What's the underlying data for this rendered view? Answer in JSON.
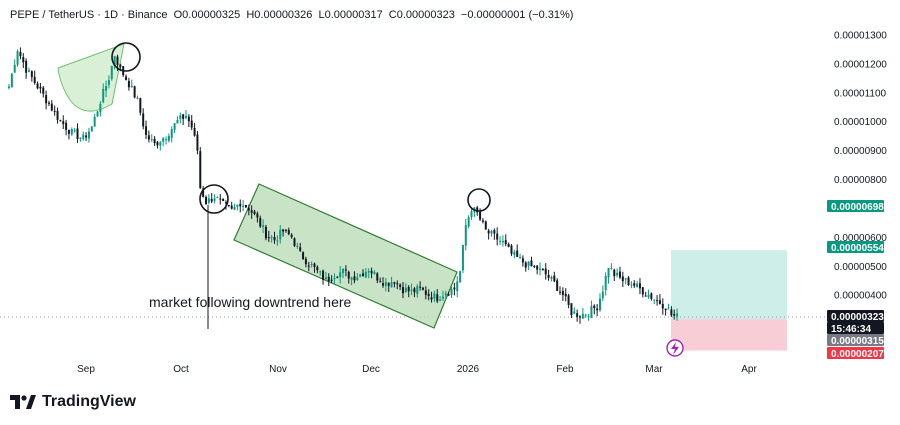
{
  "header": {
    "symbol": "PEPE / TetherUS · 1D · Binance",
    "open": "O0.00000325",
    "high": "H0.00000326",
    "low": "L0.00000317",
    "close": "C0.00000323",
    "change": "−0.00000001 (−0.31%)"
  },
  "footer": {
    "brand": "TradingView",
    "logo_icon": "tradingview-logo-icon"
  },
  "colors": {
    "up": "#089981",
    "down": "#131722",
    "target_zone": "#cdeee9",
    "stop_zone": "#f8cdd5",
    "channel": "#b7d9b3",
    "channel_border": "#2e7d32",
    "price_tag": "#089981",
    "current_tag": "#131722",
    "stop_tag": "#f23645",
    "entry_tag": "#787b86"
  },
  "chart_data": {
    "type": "candlestick",
    "y_axis": {
      "ticks": [
        "0.00001300",
        "0.00001200",
        "0.00001100",
        "0.00001000",
        "0.00000900",
        "0.00000800",
        "0.00000600",
        "0.00000500",
        "0.00000400"
      ],
      "tick_values": [
        1300,
        1200,
        1100,
        1000,
        900,
        800,
        600,
        500,
        400
      ],
      "ylim": [
        150,
        1350
      ]
    },
    "x_axis": {
      "ticks": [
        "Sep",
        "Oct",
        "Nov",
        "Dec",
        "2026",
        "Feb",
        "Mar",
        "Apr"
      ]
    },
    "price_tags": [
      {
        "label": "0.00000698",
        "value": 698,
        "kind": "price"
      },
      {
        "label": "0.00000554",
        "value": 554,
        "kind": "price"
      },
      {
        "label": "0.00000323",
        "value": 323,
        "kind": "current"
      },
      {
        "label": "15:46:34",
        "value": 323,
        "kind": "timer"
      },
      {
        "label": "0.00000315",
        "value": 315,
        "kind": "entry"
      },
      {
        "label": "0.00000207",
        "value": 207,
        "kind": "stop"
      }
    ],
    "annotations": {
      "text": "market following downtrend here"
    },
    "position": {
      "target": 554,
      "entry": 315,
      "stop": 207
    },
    "waypoints": [
      [
        0,
        1120
      ],
      [
        3,
        1250
      ],
      [
        6,
        1180
      ],
      [
        10,
        1120
      ],
      [
        14,
        1060
      ],
      [
        18,
        1000
      ],
      [
        22,
        960
      ],
      [
        26,
        940
      ],
      [
        29,
        980
      ],
      [
        32,
        1070
      ],
      [
        35,
        1150
      ],
      [
        37,
        1230
      ],
      [
        39,
        1180
      ],
      [
        42,
        1130
      ],
      [
        45,
        1070
      ],
      [
        48,
        950
      ],
      [
        51,
        920
      ],
      [
        55,
        950
      ],
      [
        59,
        1000
      ],
      [
        62,
        1020
      ],
      [
        64,
        980
      ],
      [
        66,
        900
      ],
      [
        67,
        770
      ],
      [
        69,
        720
      ],
      [
        72,
        740
      ],
      [
        75,
        710
      ],
      [
        78,
        690
      ],
      [
        81,
        720
      ],
      [
        84,
        700
      ],
      [
        87,
        660
      ],
      [
        90,
        610
      ],
      [
        93,
        590
      ],
      [
        96,
        620
      ],
      [
        99,
        600
      ],
      [
        102,
        540
      ],
      [
        105,
        510
      ],
      [
        108,
        480
      ],
      [
        111,
        450
      ],
      [
        114,
        470
      ],
      [
        117,
        480
      ],
      [
        120,
        460
      ],
      [
        123,
        470
      ],
      [
        126,
        490
      ],
      [
        129,
        460
      ],
      [
        132,
        440
      ],
      [
        135,
        450
      ],
      [
        138,
        420
      ],
      [
        141,
        410
      ],
      [
        144,
        420
      ],
      [
        147,
        400
      ],
      [
        150,
        390
      ],
      [
        153,
        410
      ],
      [
        156,
        420
      ],
      [
        158,
        480
      ],
      [
        160,
        640
      ],
      [
        162,
        700
      ],
      [
        164,
        680
      ],
      [
        167,
        620
      ],
      [
        170,
        600
      ],
      [
        173,
        580
      ],
      [
        176,
        540
      ],
      [
        179,
        520
      ],
      [
        182,
        500
      ],
      [
        185,
        490
      ],
      [
        188,
        470
      ],
      [
        191,
        440
      ],
      [
        194,
        400
      ],
      [
        197,
        340
      ],
      [
        200,
        330
      ],
      [
        203,
        340
      ],
      [
        206,
        360
      ],
      [
        208,
        420
      ],
      [
        210,
        500
      ],
      [
        212,
        470
      ],
      [
        215,
        450
      ],
      [
        218,
        440
      ],
      [
        221,
        420
      ],
      [
        224,
        400
      ],
      [
        227,
        380
      ],
      [
        230,
        360
      ],
      [
        232,
        330
      ],
      [
        234,
        323
      ]
    ]
  }
}
